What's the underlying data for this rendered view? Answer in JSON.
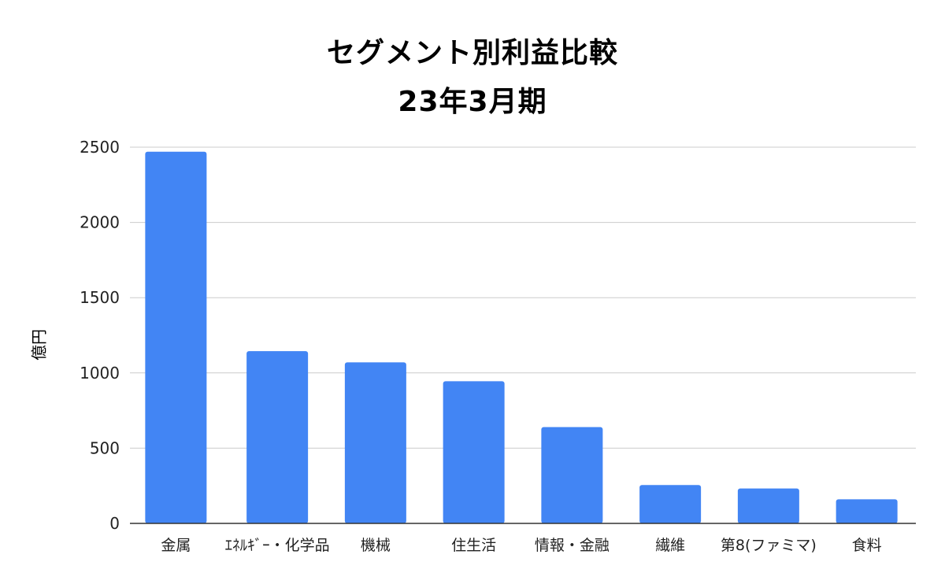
{
  "chart_data": {
    "type": "bar",
    "title": "セグメント別利益比較",
    "subtitle": "23年3月期",
    "xlabel": "",
    "ylabel": "億円",
    "categories": [
      "金属",
      "ｴﾈﾙｷﾞｰ・化学品",
      "機械",
      "住生活",
      "情報・金融",
      "繊維",
      "第8(ファミマ)",
      "食料"
    ],
    "values": [
      2470,
      1145,
      1070,
      945,
      640,
      255,
      232,
      160
    ],
    "ylim": [
      0,
      2500
    ],
    "yticks": [
      0,
      500,
      1000,
      1500,
      2000,
      2500
    ],
    "grid": true,
    "legend": "none",
    "bar_color": "#4285f4",
    "grid_color": "#cccccc",
    "axis_color": "#333333"
  }
}
